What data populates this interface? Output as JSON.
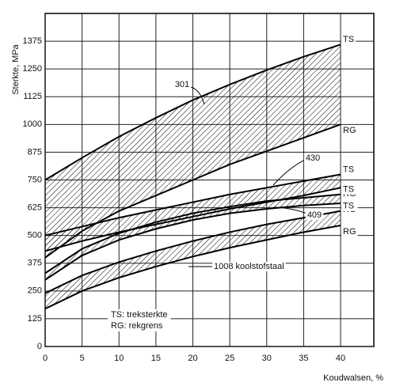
{
  "chart_data": {
    "type": "band",
    "y_label": "Sterkte, MPa",
    "x_label": "Koudwalsen, %",
    "x": [
      0,
      5,
      10,
      15,
      20,
      25,
      30,
      35,
      40
    ],
    "xlim": [
      0,
      44.5
    ],
    "xticks": [
      0,
      5,
      10,
      15,
      20,
      25,
      30,
      35,
      40
    ],
    "ylim": [
      0,
      1500
    ],
    "yticks": [
      0,
      125,
      250,
      375,
      500,
      625,
      750,
      875,
      1000,
      1125,
      1250,
      1375
    ],
    "grid": true,
    "color": "#000000",
    "bands": [
      {
        "name": "301",
        "upper_label": "TS",
        "lower_label": "RG",
        "upper": [
          750,
          850,
          945,
          1030,
          1110,
          1180,
          1245,
          1305,
          1360
        ],
        "lower": [
          400,
          520,
          610,
          680,
          750,
          820,
          880,
          940,
          1000
        ]
      },
      {
        "name": "430",
        "upper_label": "TS",
        "lower_label": "RG",
        "upper": [
          500,
          540,
          580,
          615,
          650,
          685,
          715,
          745,
          775
        ],
        "lower": [
          430,
          475,
          515,
          550,
          585,
          620,
          650,
          680,
          715
        ]
      },
      {
        "name": "409",
        "upper_label": "TS",
        "lower_label": "RG",
        "upper": [
          330,
          440,
          510,
          560,
          600,
          630,
          655,
          670,
          685
        ],
        "lower": [
          300,
          410,
          480,
          530,
          570,
          600,
          620,
          635,
          645
        ]
      },
      {
        "name": "1008 koolstofstaal",
        "upper_label": "TS",
        "lower_label": "RG",
        "upper": [
          240,
          320,
          380,
          430,
          475,
          515,
          550,
          580,
          610
        ],
        "lower": [
          170,
          250,
          310,
          360,
          405,
          445,
          480,
          515,
          545
        ]
      }
    ],
    "notes": [
      "TS: treksterkte",
      "RG: rekgrens"
    ]
  }
}
